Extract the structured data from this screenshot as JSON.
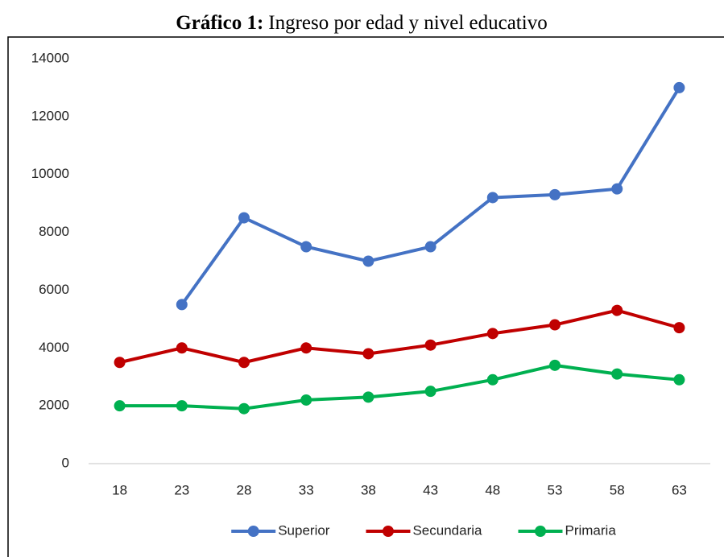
{
  "chart_data": {
    "type": "line",
    "title_label": "Gráfico 1:",
    "title": "Ingreso por edad y nivel educativo",
    "categories": [
      18,
      23,
      28,
      33,
      38,
      43,
      48,
      53,
      58,
      63
    ],
    "series": [
      {
        "name": "Superior",
        "color": "#4472c4",
        "values": [
          null,
          5500,
          8500,
          7500,
          7000,
          7500,
          9200,
          9300,
          9500,
          13000
        ]
      },
      {
        "name": "Secundaria",
        "color": "#c00000",
        "values": [
          3500,
          4000,
          3500,
          4000,
          3800,
          4100,
          4500,
          4800,
          5300,
          4700
        ]
      },
      {
        "name": "Primaria",
        "color": "#00b050",
        "values": [
          2000,
          2000,
          1900,
          2200,
          2300,
          2500,
          2900,
          3400,
          3100,
          2900
        ]
      }
    ],
    "ylim": [
      0,
      14000
    ],
    "yticks": [
      0,
      2000,
      4000,
      6000,
      8000,
      10000,
      12000,
      14000
    ],
    "grid": false,
    "legend": "bottom"
  }
}
